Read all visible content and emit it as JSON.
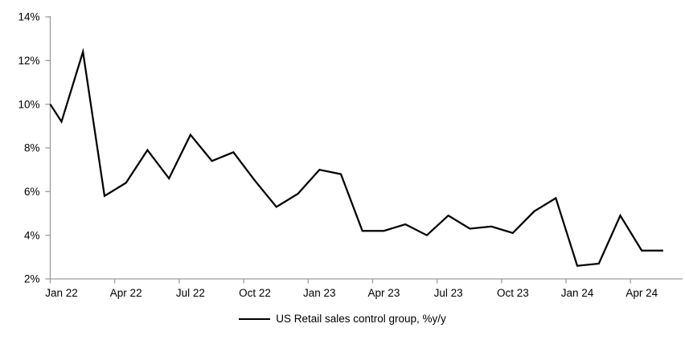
{
  "chart_data": {
    "type": "line",
    "title": "",
    "x": [
      "Jan 22",
      "Feb 22",
      "Mar 22",
      "Apr 22",
      "May 22",
      "Jun 22",
      "Jul 22",
      "Aug 22",
      "Sep 22",
      "Oct 22",
      "Nov 22",
      "Dec 22",
      "Jan 23",
      "Feb 23",
      "Mar 23",
      "Apr 23",
      "May 23",
      "Jun 23",
      "Jul 23",
      "Aug 23",
      "Sep 23",
      "Oct 23",
      "Nov 23",
      "Dec 23",
      "Jan 24",
      "Feb 24",
      "Mar 24",
      "Apr 24",
      "May 24"
    ],
    "series": [
      {
        "name": "US Retail sales control group, %y/y",
        "color": "#000000",
        "values": [
          9.2,
          12.4,
          5.8,
          6.4,
          7.9,
          6.6,
          8.6,
          7.4,
          7.8,
          6.5,
          5.3,
          5.9,
          7.0,
          6.8,
          4.2,
          4.2,
          4.5,
          4.0,
          4.9,
          4.3,
          4.4,
          4.1,
          5.1,
          5.7,
          2.6,
          2.7,
          4.9,
          3.3,
          3.3
        ]
      }
    ],
    "partial_left_entry": {
      "value_at_left_axis": 10.0
    },
    "ylim": [
      2,
      14
    ],
    "ytick_step": 2,
    "ytick_labels": [
      "2%",
      "4%",
      "6%",
      "8%",
      "10%",
      "12%",
      "14%"
    ],
    "xtick_labels_shown": [
      "Jan 22",
      "Apr 22",
      "Jul 22",
      "Oct 22",
      "Jan 23",
      "Apr 23",
      "Jul 23",
      "Oct 23",
      "Jan 24",
      "Apr 24"
    ],
    "xlabel": "",
    "ylabel": "",
    "grid": false,
    "legend_position": "bottom-center",
    "colors": {
      "axis": "#9c9c9c",
      "series_line": "#000000",
      "tick_text": "#000000",
      "background": "#ffffff"
    }
  },
  "legend": {
    "label": "US Retail sales control group, %y/y"
  }
}
